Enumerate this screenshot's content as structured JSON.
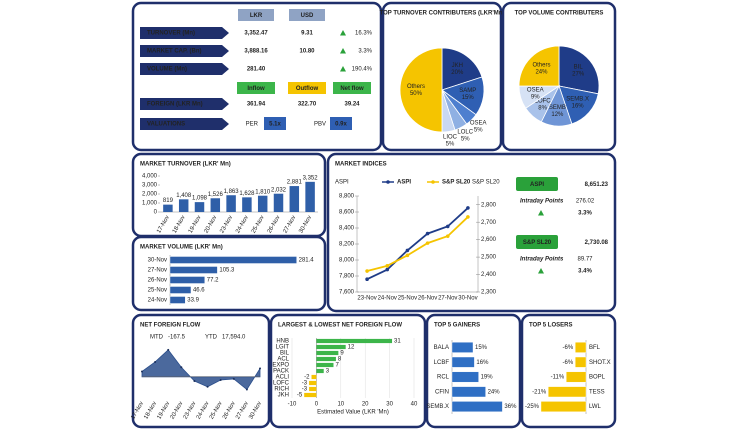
{
  "summary": {
    "currency_headers": [
      "LKR",
      "USD"
    ],
    "rows": [
      {
        "label": "TURNOVER (Mn)",
        "lkr": "3,352.47",
        "usd": "9.31",
        "change": "16.3%"
      },
      {
        "label": "MARKET CAP. (Bn)",
        "lkr": "3,888.16",
        "usd": "10.80",
        "change": "3.3%"
      },
      {
        "label": "VOLUME (Mn)",
        "lkr": "281.40",
        "change": "190.4%"
      }
    ],
    "flow_headers": [
      "Inflow",
      "Outflow",
      "Net flow"
    ],
    "foreign": {
      "label": "FOREIGN (LKR Mn)",
      "values": [
        "361.94",
        "322.70",
        "39.24"
      ]
    },
    "valuations": {
      "label": "VALUATIONS",
      "per_label": "PER",
      "per": "5.1x",
      "pbv_label": "PBV",
      "pbv": "0.9x"
    }
  },
  "chart_data": [
    {
      "type": "pie",
      "title": "TOP TURNOVER CONTRIBUTERS (LKR'Mn)",
      "categories": [
        "JKH",
        "SAMP",
        "OSEA",
        "LOLC",
        "LIOC",
        "Others"
      ],
      "values": [
        20,
        15,
        5,
        5,
        5,
        50
      ],
      "value_labels": [
        "20%",
        "15%",
        "5%",
        "5%",
        "5%",
        "50%"
      ],
      "colors": [
        "#1f3c88",
        "#2f5fb3",
        "#4e7fcf",
        "#8fb0e3",
        "#c9d8f2",
        "#f5c400"
      ]
    },
    {
      "type": "pie",
      "title": "TOP VOLUME CONTRIBUTERS",
      "categories": [
        "BIL",
        "SEMB.X",
        "SEMB",
        "LOFC",
        "OSEA",
        "Others"
      ],
      "values": [
        27,
        16,
        12,
        8,
        9,
        24
      ],
      "value_labels": [
        "27%",
        "16%",
        "12%",
        "8%",
        "9%",
        "24%"
      ],
      "colors": [
        "#1f3c88",
        "#2f5fb3",
        "#6f95d6",
        "#a9c2ea",
        "#d6e2f5",
        "#f5c400"
      ]
    },
    {
      "type": "bar",
      "title": "MARKET TURNOVER (LKR' Mn)",
      "categories": [
        "17-Nov",
        "18-Nov",
        "19-Nov",
        "20-Nov",
        "23-Nov",
        "24-Nov",
        "25-Nov",
        "26-Nov",
        "27-Nov",
        "30-Nov"
      ],
      "values": [
        819,
        1408,
        1098,
        1526,
        1863,
        1628,
        1810,
        2032,
        2881,
        3352
      ],
      "value_labels": [
        "819",
        "1,408",
        "1,098",
        "1,526",
        "1,863",
        "1,628",
        "1,810",
        "2,032",
        "2,881",
        "3,352"
      ],
      "color": "#2f5fa8",
      "ylim": [
        0,
        4000
      ],
      "yticks": [
        0,
        {
          "value": 1000,
          "label": "1,000"
        },
        {
          "value": 2000,
          "label": "2,000"
        },
        {
          "value": 3000,
          "label": "3,000"
        },
        {
          "value": 4000,
          "label": "4,000"
        }
      ]
    },
    {
      "type": "hbar",
      "title": "MARKET VOLUME (LKR' Mn)",
      "categories": [
        "30-Nov",
        "27-Nov",
        "26-Nov",
        "25-Nov",
        "24-Nov"
      ],
      "values": [
        281.4,
        105.3,
        77.2,
        46.6,
        33.9
      ],
      "color": "#2f5fa8",
      "xlim": [
        0,
        300
      ]
    },
    {
      "type": "line",
      "title": "MARKET INDICES",
      "categories": [
        "23-Nov",
        "24-Nov",
        "25-Nov",
        "26-Nov",
        "27-Nov",
        "30-Nov"
      ],
      "series": [
        {
          "name": "ASPI",
          "color": "#1f3c88",
          "values": [
            7760,
            7880,
            8120,
            8330,
            8420,
            8651.23
          ]
        },
        {
          "name": "S&P SL20",
          "color": "#f5c400",
          "axis": "y2",
          "values": [
            2420,
            2450,
            2510,
            2580,
            2620,
            2730.08
          ]
        }
      ],
      "y_label": "ASPI",
      "y2_label": "S&P SL20",
      "ylim": [
        7600,
        8800
      ],
      "yticks": [
        {
          "value": 7600,
          "label": "7,600"
        },
        {
          "value": 7800,
          "label": "7,800"
        },
        {
          "value": 8000,
          "label": "8,000"
        },
        {
          "value": 8200,
          "label": "8,200"
        },
        {
          "value": 8400,
          "label": "8,400"
        },
        {
          "value": 8600,
          "label": "8,600"
        },
        {
          "value": 8800,
          "label": "8,800"
        }
      ],
      "y2lim": [
        2300,
        2850
      ],
      "y2ticks": [
        {
          "value": 2300,
          "label": "2,300"
        },
        {
          "value": 2400,
          "label": "2,400"
        },
        {
          "value": 2500,
          "label": "2,500"
        },
        {
          "value": 2600,
          "label": "2,600"
        },
        {
          "value": 2700,
          "label": "2,700"
        },
        {
          "value": 2800,
          "label": "2,800"
        }
      ],
      "summary_boxes": [
        {
          "name": "ASPI",
          "value": "8,651.23",
          "intraday_label": "Intraday Points",
          "points": "276.02",
          "change": "3.3%"
        },
        {
          "name": "S&P SL20",
          "value": "2,730.08",
          "intraday_label": "Intraday Points",
          "points": "89.77",
          "change": "3.4%"
        }
      ]
    },
    {
      "type": "area",
      "title": "NET FOREIGN FLOW",
      "mtd_label": "MTD",
      "mtd": "-167.5",
      "ytd_label": "YTD",
      "ytd": "17,594.0",
      "categories": [
        "17-Nov",
        "18-Nov",
        "19-Nov",
        "20-Nov",
        "23-Nov",
        "24-Nov",
        "25-Nov",
        "26-Nov",
        "27-Nov",
        "30-Nov"
      ],
      "values": [
        25,
        70,
        127,
        45,
        -20,
        -47,
        -15,
        -10,
        -60,
        39
      ],
      "color": "#2c4f8c",
      "ylim": [
        -100,
        150
      ]
    },
    {
      "type": "hbar",
      "title": "LARGEST & LOWEST NET FOREIGN FLOW",
      "categories": [
        "HNB",
        "LGIT",
        "BIL",
        "ACL",
        "EXPO",
        "PACK",
        "ACLI",
        "LOFC",
        "RICH",
        "JKH"
      ],
      "values": [
        31,
        12,
        9,
        8,
        7,
        3,
        -2,
        -3,
        -3,
        -5
      ],
      "color": "#3cb54a",
      "negative_color": "#f5c400",
      "x_label": "Estimated Value (LKR 'Mn)",
      "xlim": [
        -10,
        40
      ],
      "xticks": [
        -10,
        0,
        10,
        20,
        30,
        40
      ]
    },
    {
      "type": "hbar",
      "title": "TOP 5 GAINERS",
      "categories": [
        "BALA",
        "LCBF",
        "RCL",
        "CFIN",
        "SEMB.X"
      ],
      "values": [
        15,
        16,
        19,
        24,
        36
      ],
      "value_labels": [
        "15%",
        "16%",
        "19%",
        "24%",
        "36%"
      ],
      "color": "#2f6fc4",
      "xlim": [
        0,
        40
      ]
    },
    {
      "type": "hbar",
      "title": "TOP 5 LOSERS",
      "categories": [
        "BFL",
        "SHOT.X",
        "BOPL",
        "TESS",
        "LWL"
      ],
      "values": [
        -6,
        -6,
        -11,
        -21,
        -25
      ],
      "value_labels": [
        "-6%",
        "-6%",
        "-11%",
        "-21%",
        "-25%"
      ],
      "color": "#f5c400",
      "xlim": [
        -30,
        0
      ]
    }
  ]
}
